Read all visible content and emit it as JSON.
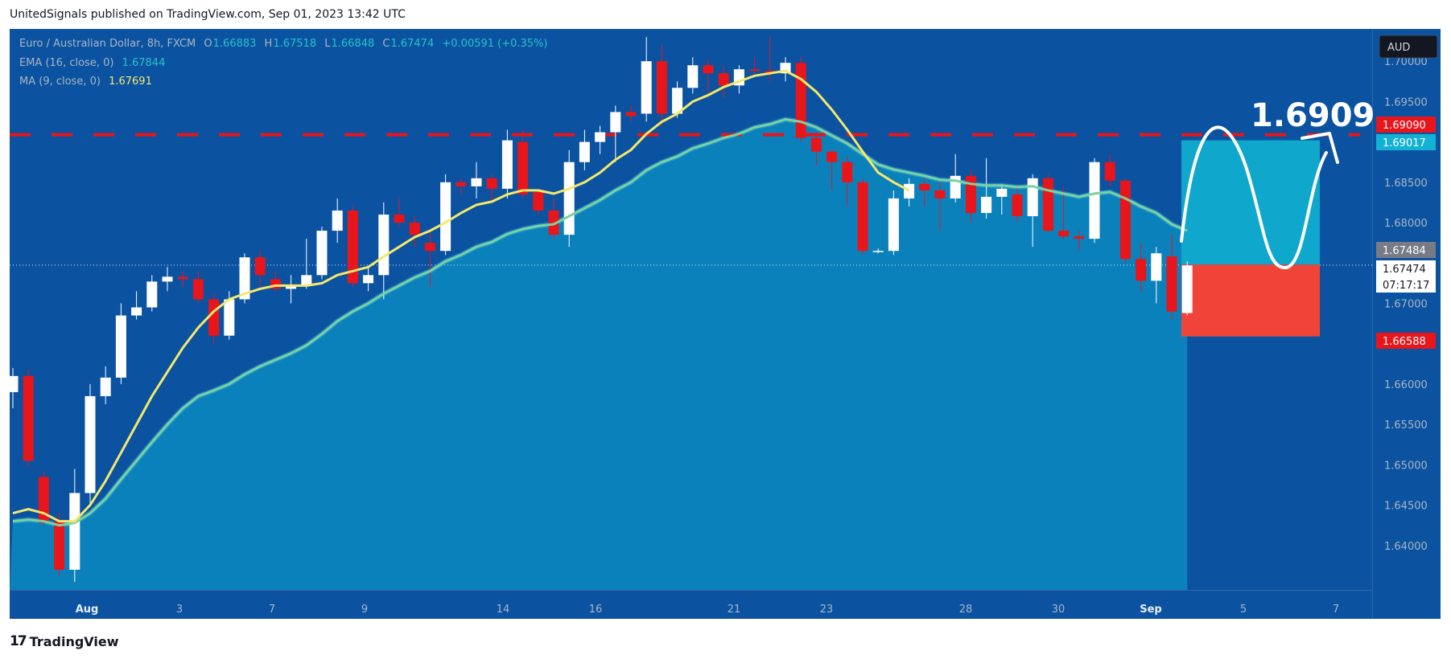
{
  "header": {
    "published": "UnitedSignals published on TradingView.com, Sep 01, 2023 13:42 UTC"
  },
  "footer": {
    "brand": "TradingView"
  },
  "colors": {
    "background": "#0b53a1",
    "area": "#0b86bf",
    "bull": "#ffffff",
    "bear": "#e8151b",
    "ma": "#f5e86a",
    "ema": "#7fd0a0",
    "target_line": "#e8151b",
    "tp_zone": "#0fa8cc",
    "sl_zone": "#f04438"
  },
  "legend": {
    "symbol": "Euro / Australian Dollar, 8h, FXCM",
    "o_label": "O",
    "o": "1.66883",
    "h_label": "H",
    "h": "1.67518",
    "l_label": "L",
    "l": "1.66848",
    "c_label": "C",
    "c": "1.67474",
    "change": "+0.00591 (+0.35%)",
    "ema_label": "EMA (16, close, 0)",
    "ema_value": "1.67844",
    "ma_label": "MA (9, close, 0)",
    "ma_value": "1.67691"
  },
  "annotations": {
    "target_text": "1.6909"
  },
  "chart_data": {
    "type": "candlestick",
    "currency": "AUD",
    "x_tick_labels": [
      "Aug",
      "3",
      "7",
      "9",
      "14",
      "16",
      "21",
      "23",
      "28",
      "30",
      "Sep",
      "5",
      "7"
    ],
    "y_tick_labels": [
      "1.70000",
      "1.69500",
      "1.68500",
      "1.68000",
      "1.67000",
      "1.66000",
      "1.65500",
      "1.65000",
      "1.64500",
      "1.64000"
    ],
    "ylim": [
      1.6345,
      1.704
    ],
    "price_tags": [
      {
        "value": "1.69090",
        "style": "red"
      },
      {
        "value": "1.69017",
        "style": "cyan"
      },
      {
        "value": "1.67484",
        "style": "gray"
      },
      {
        "value": "1.67474",
        "style": "white"
      },
      {
        "value": "07:17:17",
        "style": "white"
      },
      {
        "value": "1.66588",
        "style": "red"
      }
    ],
    "horizontal_line": 1.6909,
    "position": {
      "entry": 1.6748,
      "target": 1.6902,
      "stop": 1.6659
    },
    "candles": [
      {
        "o": 1.659,
        "h": 1.662,
        "l": 1.657,
        "c": 1.661
      },
      {
        "o": 1.661,
        "h": 1.6618,
        "l": 1.6498,
        "c": 1.6505
      },
      {
        "o": 1.6485,
        "h": 1.6492,
        "l": 1.6425,
        "c": 1.6428
      },
      {
        "o": 1.643,
        "h": 1.644,
        "l": 1.6362,
        "c": 1.637
      },
      {
        "o": 1.637,
        "h": 1.6495,
        "l": 1.6355,
        "c": 1.6465
      },
      {
        "o": 1.6465,
        "h": 1.66,
        "l": 1.645,
        "c": 1.6585
      },
      {
        "o": 1.6585,
        "h": 1.6622,
        "l": 1.6575,
        "c": 1.6608
      },
      {
        "o": 1.6608,
        "h": 1.67,
        "l": 1.66,
        "c": 1.6685
      },
      {
        "o": 1.6685,
        "h": 1.6715,
        "l": 1.668,
        "c": 1.6695
      },
      {
        "o": 1.6695,
        "h": 1.6735,
        "l": 1.669,
        "c": 1.6727
      },
      {
        "o": 1.6727,
        "h": 1.6745,
        "l": 1.6715,
        "c": 1.6733
      },
      {
        "o": 1.6733,
        "h": 1.674,
        "l": 1.672,
        "c": 1.673
      },
      {
        "o": 1.673,
        "h": 1.674,
        "l": 1.67,
        "c": 1.6705
      },
      {
        "o": 1.6705,
        "h": 1.6712,
        "l": 1.665,
        "c": 1.666
      },
      {
        "o": 1.666,
        "h": 1.6715,
        "l": 1.6655,
        "c": 1.6705
      },
      {
        "o": 1.6705,
        "h": 1.6762,
        "l": 1.67,
        "c": 1.6757
      },
      {
        "o": 1.6757,
        "h": 1.6765,
        "l": 1.672,
        "c": 1.6735
      },
      {
        "o": 1.673,
        "h": 1.674,
        "l": 1.6715,
        "c": 1.6718
      },
      {
        "o": 1.6718,
        "h": 1.6735,
        "l": 1.67,
        "c": 1.6723
      },
      {
        "o": 1.6723,
        "h": 1.678,
        "l": 1.6718,
        "c": 1.6735
      },
      {
        "o": 1.6735,
        "h": 1.6795,
        "l": 1.673,
        "c": 1.679
      },
      {
        "o": 1.679,
        "h": 1.683,
        "l": 1.6775,
        "c": 1.6815
      },
      {
        "o": 1.6815,
        "h": 1.682,
        "l": 1.672,
        "c": 1.6725
      },
      {
        "o": 1.6725,
        "h": 1.6745,
        "l": 1.6715,
        "c": 1.6735
      },
      {
        "o": 1.6735,
        "h": 1.6825,
        "l": 1.6705,
        "c": 1.681
      },
      {
        "o": 1.681,
        "h": 1.683,
        "l": 1.6795,
        "c": 1.68
      },
      {
        "o": 1.68,
        "h": 1.6808,
        "l": 1.677,
        "c": 1.6785
      },
      {
        "o": 1.6775,
        "h": 1.679,
        "l": 1.672,
        "c": 1.6765
      },
      {
        "o": 1.6765,
        "h": 1.686,
        "l": 1.676,
        "c": 1.685
      },
      {
        "o": 1.685,
        "h": 1.6855,
        "l": 1.6835,
        "c": 1.6845
      },
      {
        "o": 1.6845,
        "h": 1.6875,
        "l": 1.683,
        "c": 1.6855
      },
      {
        "o": 1.6855,
        "h": 1.686,
        "l": 1.6825,
        "c": 1.6842
      },
      {
        "o": 1.6842,
        "h": 1.6915,
        "l": 1.683,
        "c": 1.6902
      },
      {
        "o": 1.69,
        "h": 1.6915,
        "l": 1.683,
        "c": 1.6835
      },
      {
        "o": 1.6838,
        "h": 1.6842,
        "l": 1.681,
        "c": 1.6815
      },
      {
        "o": 1.6815,
        "h": 1.683,
        "l": 1.678,
        "c": 1.6785
      },
      {
        "o": 1.6785,
        "h": 1.689,
        "l": 1.677,
        "c": 1.6875
      },
      {
        "o": 1.6875,
        "h": 1.6915,
        "l": 1.6865,
        "c": 1.69
      },
      {
        "o": 1.69,
        "h": 1.692,
        "l": 1.6885,
        "c": 1.6912
      },
      {
        "o": 1.6912,
        "h": 1.6945,
        "l": 1.6875,
        "c": 1.6937
      },
      {
        "o": 1.6937,
        "h": 1.6945,
        "l": 1.6925,
        "c": 1.6932
      },
      {
        "o": 1.6935,
        "h": 1.703,
        "l": 1.6925,
        "c": 1.7
      },
      {
        "o": 1.7,
        "h": 1.702,
        "l": 1.692,
        "c": 1.6935
      },
      {
        "o": 1.6935,
        "h": 1.6975,
        "l": 1.693,
        "c": 1.6967
      },
      {
        "o": 1.6967,
        "h": 1.7005,
        "l": 1.696,
        "c": 1.6995
      },
      {
        "o": 1.6995,
        "h": 1.7002,
        "l": 1.6955,
        "c": 1.6985
      },
      {
        "o": 1.6985,
        "h": 1.6995,
        "l": 1.6955,
        "c": 1.697
      },
      {
        "o": 1.697,
        "h": 1.6995,
        "l": 1.696,
        "c": 1.699
      },
      {
        "o": 1.699,
        "h": 1.7005,
        "l": 1.6985,
        "c": 1.6988
      },
      {
        "o": 1.6988,
        "h": 1.703,
        "l": 1.6975,
        "c": 1.6985
      },
      {
        "o": 1.6985,
        "h": 1.7005,
        "l": 1.6975,
        "c": 1.6998
      },
      {
        "o": 1.6998,
        "h": 1.7005,
        "l": 1.69,
        "c": 1.6905
      },
      {
        "o": 1.6905,
        "h": 1.6912,
        "l": 1.687,
        "c": 1.6888
      },
      {
        "o": 1.6888,
        "h": 1.689,
        "l": 1.684,
        "c": 1.6875
      },
      {
        "o": 1.6875,
        "h": 1.6882,
        "l": 1.682,
        "c": 1.685
      },
      {
        "o": 1.685,
        "h": 1.6855,
        "l": 1.676,
        "c": 1.6765
      },
      {
        "o": 1.6765,
        "h": 1.6768,
        "l": 1.6762,
        "c": 1.6765
      },
      {
        "o": 1.6765,
        "h": 1.684,
        "l": 1.676,
        "c": 1.683
      },
      {
        "o": 1.683,
        "h": 1.6855,
        "l": 1.682,
        "c": 1.6848
      },
      {
        "o": 1.6848,
        "h": 1.6855,
        "l": 1.682,
        "c": 1.684
      },
      {
        "o": 1.684,
        "h": 1.685,
        "l": 1.679,
        "c": 1.683
      },
      {
        "o": 1.683,
        "h": 1.6885,
        "l": 1.6825,
        "c": 1.6858
      },
      {
        "o": 1.6858,
        "h": 1.6865,
        "l": 1.68,
        "c": 1.6812
      },
      {
        "o": 1.6812,
        "h": 1.688,
        "l": 1.6805,
        "c": 1.6832
      },
      {
        "o": 1.6832,
        "h": 1.6848,
        "l": 1.681,
        "c": 1.6842
      },
      {
        "o": 1.6835,
        "h": 1.6845,
        "l": 1.68,
        "c": 1.6808
      },
      {
        "o": 1.6808,
        "h": 1.686,
        "l": 1.677,
        "c": 1.6855
      },
      {
        "o": 1.6855,
        "h": 1.686,
        "l": 1.6788,
        "c": 1.679
      },
      {
        "o": 1.679,
        "h": 1.6845,
        "l": 1.678,
        "c": 1.6783
      },
      {
        "o": 1.6783,
        "h": 1.679,
        "l": 1.6765,
        "c": 1.678
      },
      {
        "o": 1.678,
        "h": 1.688,
        "l": 1.6775,
        "c": 1.6875
      },
      {
        "o": 1.6875,
        "h": 1.6885,
        "l": 1.6845,
        "c": 1.6852
      },
      {
        "o": 1.6852,
        "h": 1.6855,
        "l": 1.675,
        "c": 1.6755
      },
      {
        "o": 1.6755,
        "h": 1.6775,
        "l": 1.6715,
        "c": 1.6728
      },
      {
        "o": 1.6728,
        "h": 1.677,
        "l": 1.67,
        "c": 1.6762
      },
      {
        "o": 1.6758,
        "h": 1.6785,
        "l": 1.668,
        "c": 1.669
      },
      {
        "o": 1.6688,
        "h": 1.6752,
        "l": 1.6685,
        "c": 1.6747
      }
    ],
    "ema": [
      1.643,
      1.6432,
      1.643,
      1.6425,
      1.6428,
      1.644,
      1.6458,
      1.6482,
      1.6505,
      1.6528,
      1.655,
      1.657,
      1.6585,
      1.6592,
      1.66,
      1.6612,
      1.6622,
      1.663,
      1.6638,
      1.6648,
      1.6662,
      1.6678,
      1.669,
      1.67,
      1.6712,
      1.6722,
      1.6732,
      1.674,
      1.6752,
      1.676,
      1.677,
      1.6776,
      1.6786,
      1.6792,
      1.6796,
      1.6798,
      1.6808,
      1.6818,
      1.6828,
      1.684,
      1.685,
      1.6865,
      1.6875,
      1.6882,
      1.6892,
      1.6898,
      1.6905,
      1.691,
      1.6918,
      1.6922,
      1.6928,
      1.6925,
      1.6918,
      1.6908,
      1.6898,
      1.6885,
      1.6872,
      1.6866,
      1.6862,
      1.6858,
      1.6853,
      1.6852,
      1.6848,
      1.6846,
      1.6846,
      1.6844,
      1.6845,
      1.684,
      1.6836,
      1.6832,
      1.6836,
      1.6838,
      1.683,
      1.682,
      1.6812,
      1.6798,
      1.679
    ],
    "ma": [
      1.644,
      1.6445,
      1.644,
      1.643,
      1.643,
      1.645,
      1.648,
      1.6515,
      1.655,
      1.6585,
      1.6615,
      1.6645,
      1.667,
      1.669,
      1.6705,
      1.6712,
      1.6718,
      1.6722,
      1.6722,
      1.6722,
      1.6725,
      1.6735,
      1.674,
      1.6745,
      1.6758,
      1.677,
      1.6782,
      1.679,
      1.68,
      1.6812,
      1.6822,
      1.6826,
      1.6835,
      1.684,
      1.684,
      1.6836,
      1.6842,
      1.685,
      1.6862,
      1.6878,
      1.689,
      1.691,
      1.6925,
      1.6935,
      1.695,
      1.6958,
      1.6968,
      1.6975,
      1.6982,
      1.6985,
      1.6988,
      1.6978,
      1.6962,
      1.694,
      1.6915,
      1.6888,
      1.6862,
      1.685,
      1.684,
      1.6832,
      1.6822,
      1.6822,
      1.6826,
      1.6832,
      1.6835,
      1.6832,
      1.6835,
      1.683,
      1.6826,
      1.6822,
      1.6822,
      1.6825,
      1.6815,
      1.6802,
      1.679,
      1.6778,
      1.677
    ]
  }
}
